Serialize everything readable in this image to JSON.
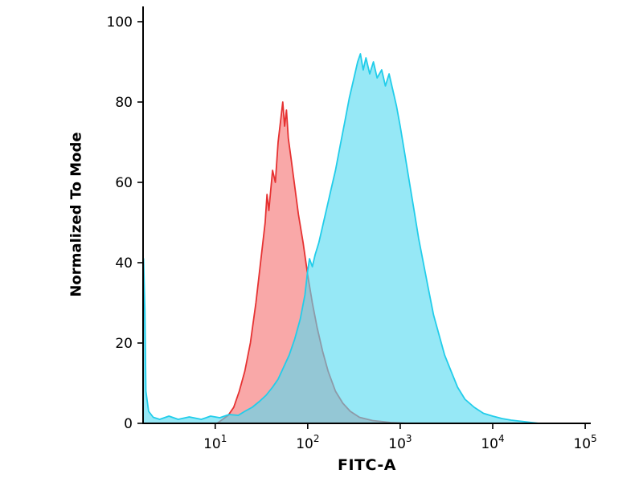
{
  "figure": {
    "background_color": "#ffffff",
    "title": "",
    "legend": "none"
  },
  "chart_data": {
    "type": "area",
    "subtype": "flow-cytometry-histogram-overlay",
    "title": "",
    "grid": false,
    "legend_position": "none",
    "x_axis": {
      "label": "FITC-A",
      "scale": "log10",
      "ticks_exponents": [
        1,
        2,
        3,
        4,
        5
      ],
      "tick_label_base": "10",
      "min_exponent": 0.22,
      "max_exponent": 5.06
    },
    "y_axis": {
      "label": "Normalized To Mode",
      "scale": "linear",
      "ticks": [
        0,
        20,
        40,
        60,
        80,
        100
      ],
      "min": 0,
      "max": 103.8
    },
    "series": [
      {
        "name": "red-control-population",
        "stroke": "#e63232",
        "fill": "rgba(244, 96, 96, 0.55)",
        "points": [
          [
            1.02,
            0
          ],
          [
            1.08,
            1
          ],
          [
            1.14,
            2
          ],
          [
            1.2,
            4
          ],
          [
            1.26,
            8
          ],
          [
            1.32,
            13
          ],
          [
            1.38,
            20
          ],
          [
            1.44,
            30
          ],
          [
            1.5,
            42
          ],
          [
            1.54,
            50
          ],
          [
            1.56,
            57
          ],
          [
            1.58,
            53
          ],
          [
            1.62,
            63
          ],
          [
            1.65,
            60
          ],
          [
            1.68,
            70
          ],
          [
            1.71,
            76
          ],
          [
            1.73,
            80
          ],
          [
            1.75,
            74
          ],
          [
            1.77,
            78
          ],
          [
            1.79,
            71
          ],
          [
            1.82,
            66
          ],
          [
            1.86,
            59
          ],
          [
            1.9,
            52
          ],
          [
            1.95,
            45
          ],
          [
            2.0,
            37
          ],
          [
            2.05,
            30
          ],
          [
            2.1,
            24
          ],
          [
            2.16,
            18
          ],
          [
            2.22,
            13
          ],
          [
            2.3,
            8
          ],
          [
            2.38,
            5
          ],
          [
            2.46,
            3
          ],
          [
            2.56,
            1.5
          ],
          [
            2.7,
            0.7
          ],
          [
            2.9,
            0.2
          ],
          [
            3.1,
            0
          ]
        ]
      },
      {
        "name": "cyan-stained-population",
        "stroke": "#22cdea",
        "fill": "rgba(86, 218, 240, 0.62)",
        "points": [
          [
            0.22,
            0
          ],
          [
            0.225,
            41
          ],
          [
            0.24,
            28
          ],
          [
            0.25,
            8
          ],
          [
            0.28,
            3
          ],
          [
            0.33,
            1.5
          ],
          [
            0.4,
            1
          ],
          [
            0.5,
            1.8
          ],
          [
            0.6,
            1
          ],
          [
            0.72,
            1.6
          ],
          [
            0.85,
            1
          ],
          [
            0.95,
            1.8
          ],
          [
            1.05,
            1.4
          ],
          [
            1.15,
            2.2
          ],
          [
            1.25,
            2
          ],
          [
            1.32,
            3
          ],
          [
            1.4,
            4
          ],
          [
            1.48,
            5.5
          ],
          [
            1.55,
            7
          ],
          [
            1.62,
            9
          ],
          [
            1.68,
            11
          ],
          [
            1.74,
            14
          ],
          [
            1.8,
            17
          ],
          [
            1.86,
            21
          ],
          [
            1.92,
            26
          ],
          [
            1.97,
            32
          ],
          [
            2.0,
            38
          ],
          [
            2.02,
            41
          ],
          [
            2.05,
            39
          ],
          [
            2.08,
            42
          ],
          [
            2.12,
            45
          ],
          [
            2.16,
            49
          ],
          [
            2.2,
            53
          ],
          [
            2.25,
            58
          ],
          [
            2.3,
            63
          ],
          [
            2.35,
            69
          ],
          [
            2.4,
            75
          ],
          [
            2.45,
            81
          ],
          [
            2.5,
            86
          ],
          [
            2.54,
            90
          ],
          [
            2.57,
            92
          ],
          [
            2.6,
            88
          ],
          [
            2.63,
            91
          ],
          [
            2.67,
            87
          ],
          [
            2.71,
            90
          ],
          [
            2.75,
            86
          ],
          [
            2.8,
            88
          ],
          [
            2.84,
            84
          ],
          [
            2.88,
            87
          ],
          [
            2.92,
            83
          ],
          [
            2.96,
            79
          ],
          [
            3.0,
            74
          ],
          [
            3.05,
            67
          ],
          [
            3.1,
            60
          ],
          [
            3.15,
            53
          ],
          [
            3.2,
            46
          ],
          [
            3.25,
            40
          ],
          [
            3.3,
            34
          ],
          [
            3.36,
            27
          ],
          [
            3.42,
            22
          ],
          [
            3.48,
            17
          ],
          [
            3.55,
            13
          ],
          [
            3.62,
            9
          ],
          [
            3.7,
            6
          ],
          [
            3.8,
            4
          ],
          [
            3.9,
            2.5
          ],
          [
            4.0,
            1.8
          ],
          [
            4.1,
            1.2
          ],
          [
            4.2,
            0.8
          ],
          [
            4.35,
            0.4
          ],
          [
            4.5,
            0
          ]
        ]
      }
    ],
    "axis_color": "#000000"
  }
}
